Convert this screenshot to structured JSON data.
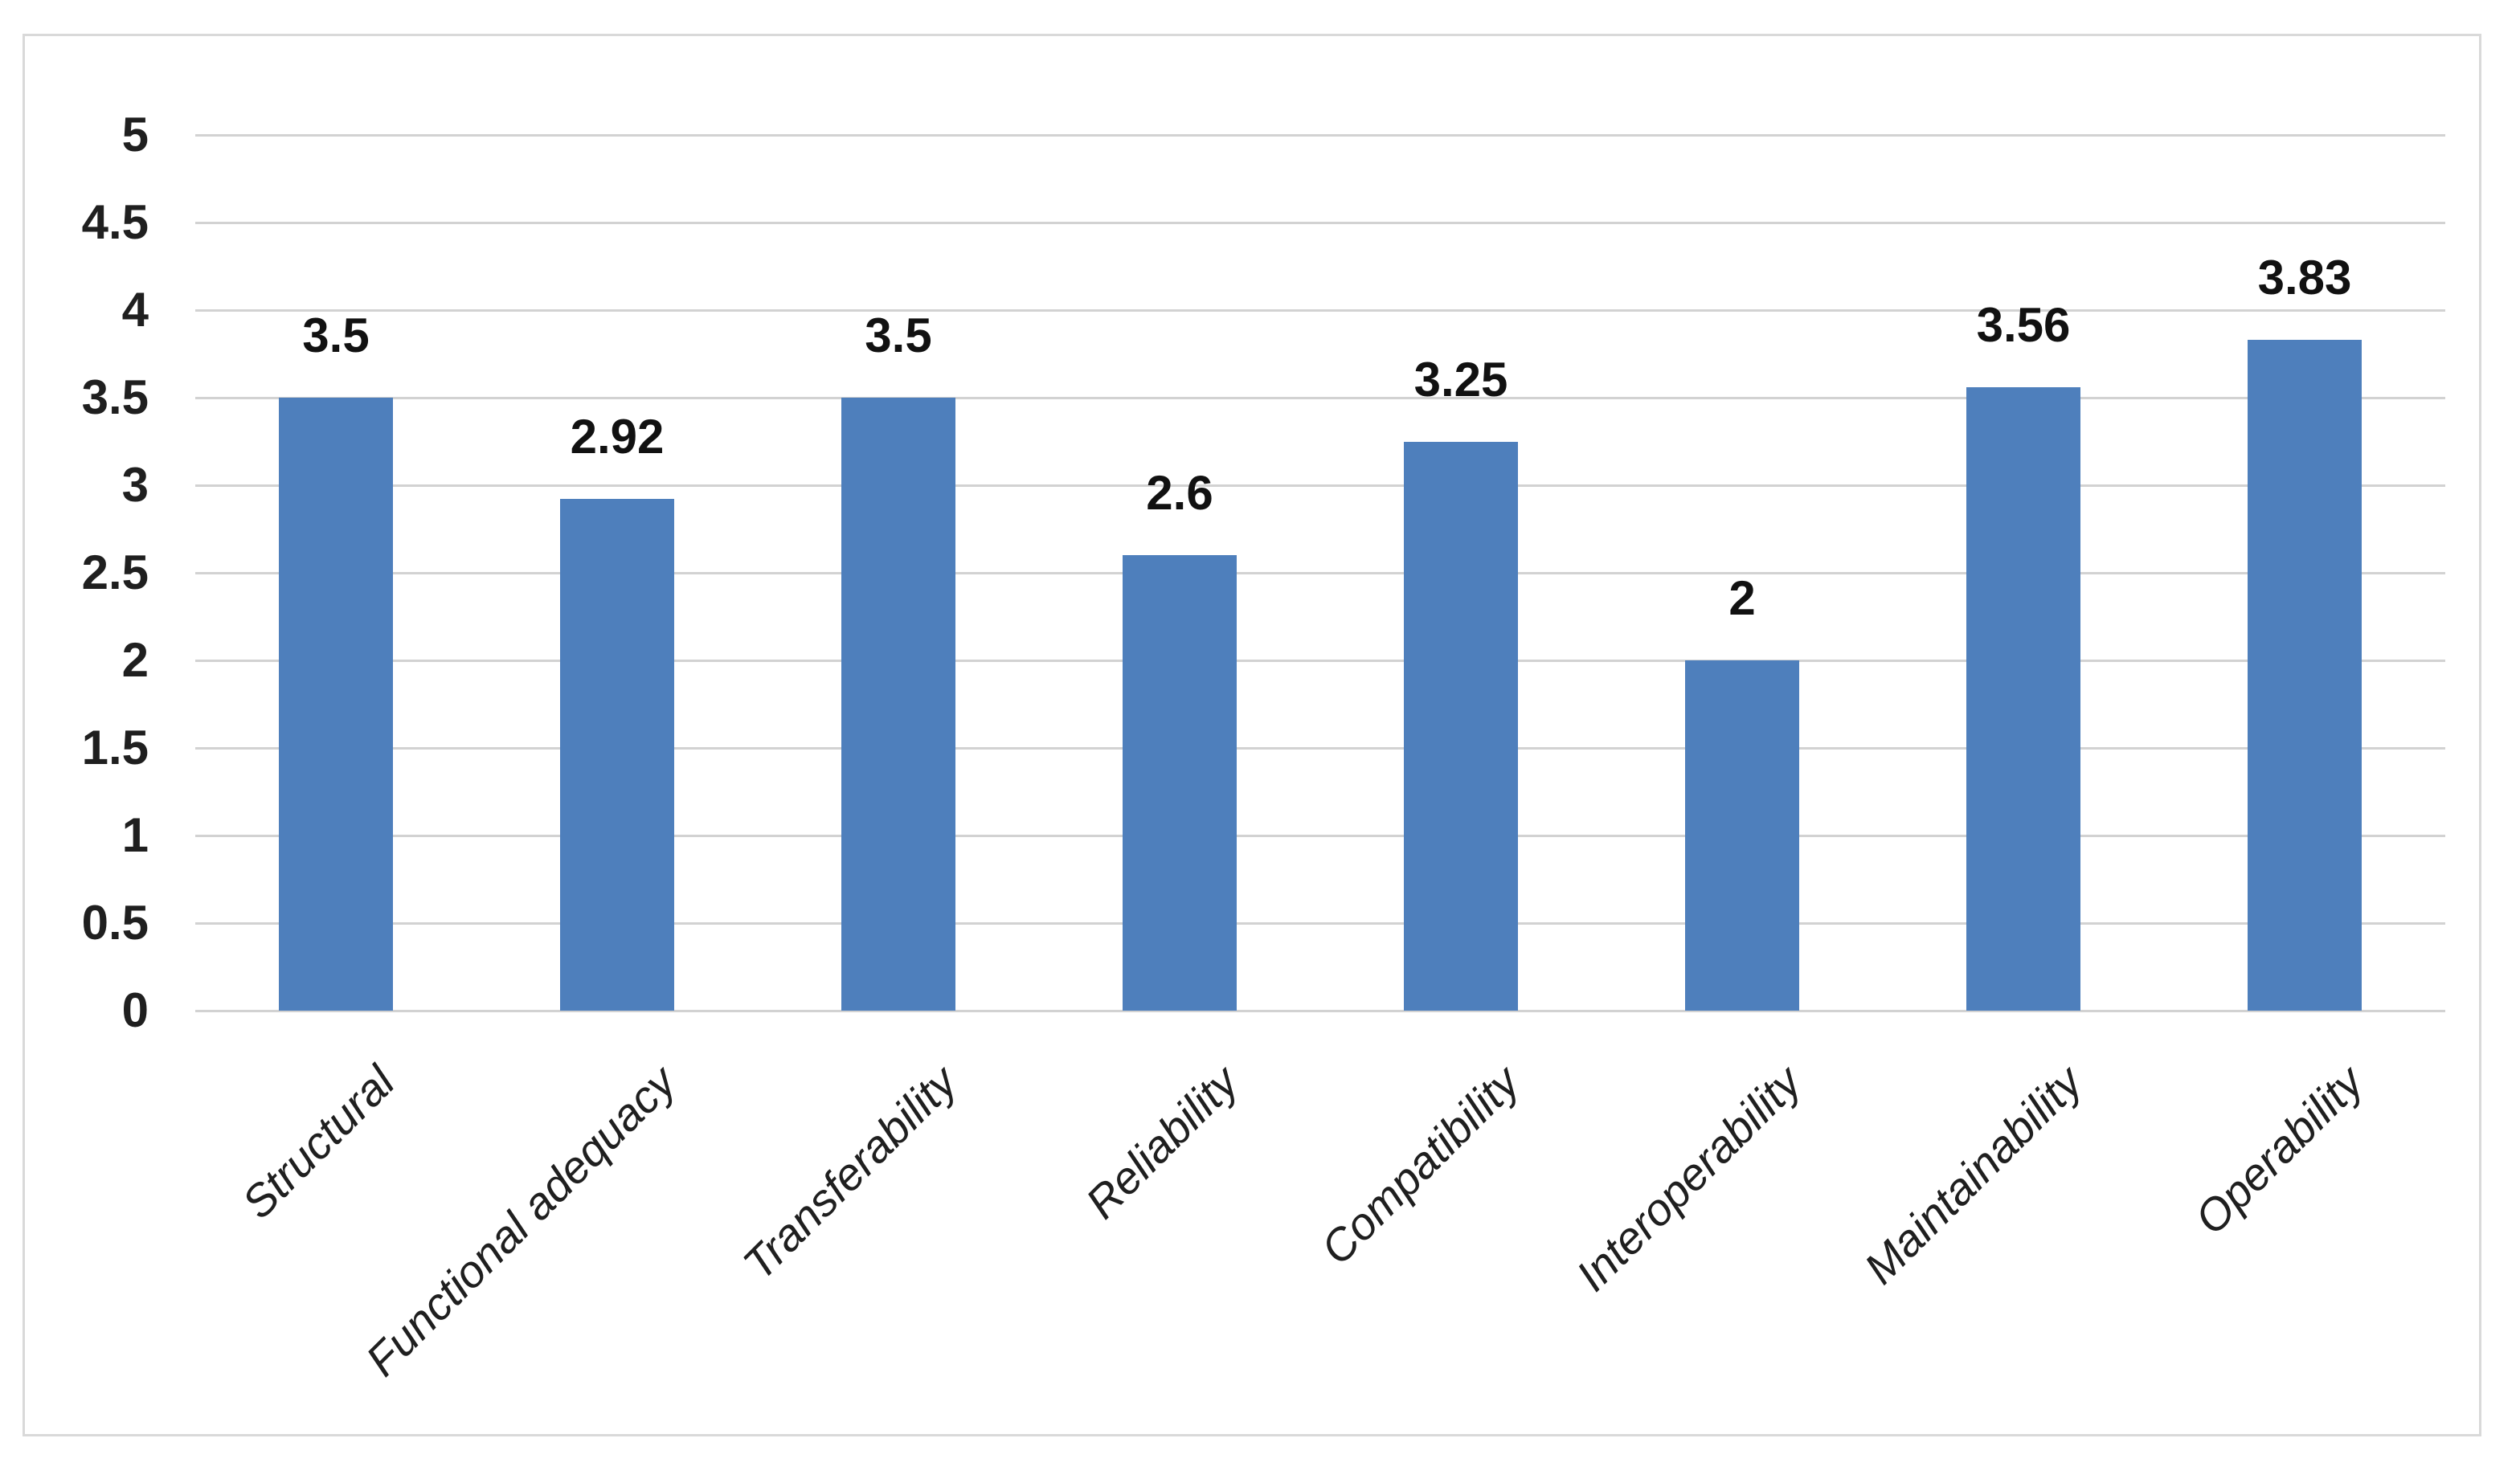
{
  "chart_data": {
    "type": "bar",
    "title": "",
    "xlabel": "",
    "ylabel": "",
    "categories": [
      "Structural",
      "Functional adequacy",
      "Transferability",
      "Reliability",
      "Compatibility",
      "Interoperability",
      "Maintainability",
      "Operability"
    ],
    "values": [
      3.5,
      2.92,
      3.5,
      2.6,
      3.25,
      2,
      3.56,
      3.83
    ],
    "data_labels": [
      "3.5",
      "2.92",
      "3.5",
      "2.6",
      "3.25",
      "2",
      "3.56",
      "3.83"
    ],
    "ylim": [
      0,
      5
    ],
    "ytick_step": 0.5,
    "ytick_labels": [
      "0",
      "0.5",
      "1",
      "1.5",
      "2",
      "2.5",
      "3",
      "3.5",
      "4",
      "4.5",
      "5"
    ],
    "grid": true,
    "legend": false,
    "colors": {
      "bar": "#4e7fbc",
      "gridline": "#d2d2d2",
      "frame_border": "#d9d9d9",
      "text": "#1f1f1f",
      "background": "#ffffff"
    }
  }
}
